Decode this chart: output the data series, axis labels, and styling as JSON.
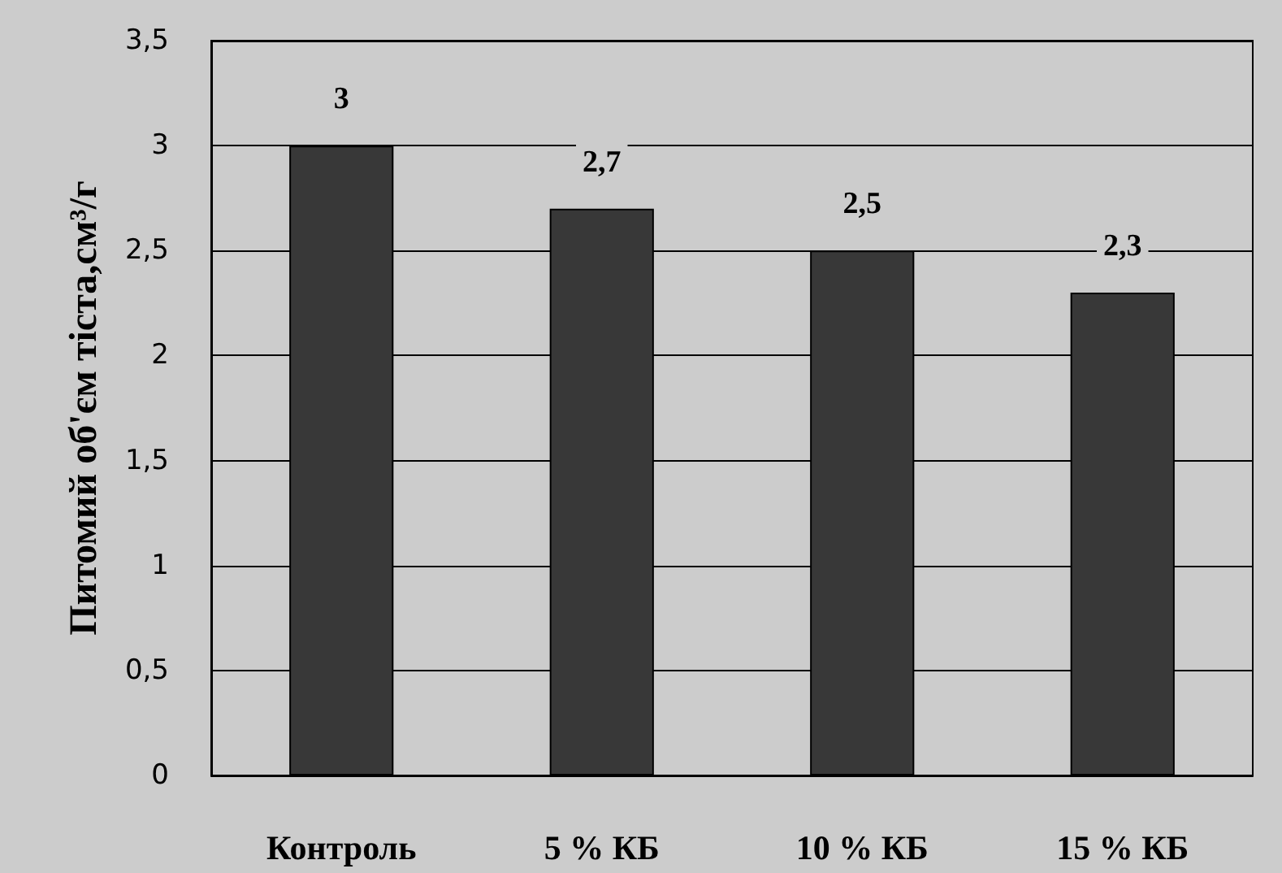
{
  "chart_data": {
    "type": "bar",
    "ylabel": "Питомий об'єм тіста,см³/г",
    "categories": [
      "Контроль",
      "5 % КБ",
      "10 % КБ",
      "15 % КБ"
    ],
    "values": [
      3,
      2.7,
      2.5,
      2.3
    ],
    "color": "#383838",
    "value_labels": [
      "3",
      "2,7",
      "2,5",
      "2,3"
    ],
    "ylim": [
      0,
      3.5
    ],
    "yticks": [
      0,
      {
        "value": 0.5,
        "label": "0,5"
      },
      1,
      {
        "value": 1.5,
        "label": "1,5"
      },
      2,
      {
        "value": 2.5,
        "label": "2,5"
      },
      3,
      {
        "value": 3.5,
        "label": "3,5"
      }
    ],
    "grid": "y"
  }
}
